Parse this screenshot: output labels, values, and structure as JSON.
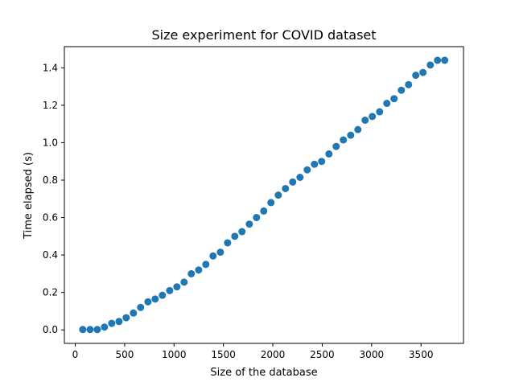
{
  "chart_data": {
    "type": "scatter",
    "title": "Size experiment for COVID dataset",
    "xlabel": "Size of the database",
    "ylabel": "Time elapsed (s)",
    "xlim": [
      -110,
      3930
    ],
    "ylim": [
      -0.072,
      1.513
    ],
    "grid": false,
    "marker_color": "#1f77b4",
    "xticks": [
      0,
      500,
      1000,
      1500,
      2000,
      2500,
      3000,
      3500
    ],
    "xtick_labels": [
      "0",
      "500",
      "1000",
      "1500",
      "2000",
      "2500",
      "3000",
      "3500"
    ],
    "yticks": [
      0.0,
      0.2,
      0.4,
      0.6,
      0.8,
      1.0,
      1.2,
      1.4
    ],
    "ytick_labels": [
      "0.0",
      "0.2",
      "0.4",
      "0.6",
      "0.8",
      "1.0",
      "1.2",
      "1.4"
    ],
    "x": [
      76,
      150,
      223,
      296,
      369,
      443,
      516,
      589,
      662,
      736,
      809,
      882,
      956,
      1029,
      1102,
      1175,
      1249,
      1322,
      1395,
      1469,
      1542,
      1615,
      1688,
      1762,
      1835,
      1908,
      1981,
      2055,
      2128,
      2201,
      2275,
      2348,
      2421,
      2494,
      2568,
      2641,
      2714,
      2788,
      2861,
      2934,
      3007,
      3081,
      3154,
      3227,
      3301,
      3374,
      3447,
      3520,
      3594,
      3667,
      3740
    ],
    "y": [
      0.002,
      0.002,
      0.002,
      0.015,
      0.035,
      0.045,
      0.065,
      0.09,
      0.12,
      0.15,
      0.165,
      0.185,
      0.21,
      0.23,
      0.255,
      0.3,
      0.32,
      0.35,
      0.395,
      0.415,
      0.465,
      0.5,
      0.525,
      0.565,
      0.6,
      0.635,
      0.68,
      0.72,
      0.755,
      0.79,
      0.815,
      0.855,
      0.885,
      0.9,
      0.94,
      0.98,
      1.015,
      1.04,
      1.07,
      1.12,
      1.14,
      1.165,
      1.21,
      1.235,
      1.28,
      1.31,
      1.36,
      1.375,
      1.415,
      1.44,
      1.44
    ]
  }
}
